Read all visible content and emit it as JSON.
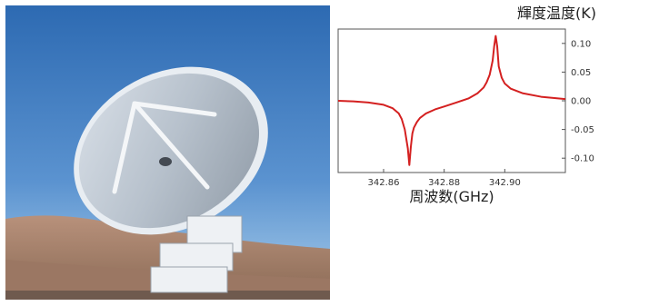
{
  "photo": {
    "subject": "radio-telescope-antenna"
  },
  "colors": {
    "line": "#d42020",
    "frame": "#555555",
    "sky_top": "#2f6fb6",
    "sky_bottom": "#9cc3e6",
    "ground": "#a98570"
  },
  "chart_data": {
    "type": "line",
    "title": "",
    "xlabel": "周波数(GHz)",
    "ylabel": "輝度温度(K)",
    "xlim": [
      342.845,
      342.92
    ],
    "ylim": [
      -0.125,
      0.125
    ],
    "xticks": [
      342.86,
      342.88,
      342.9
    ],
    "xtick_labels": [
      "342.86",
      "342.88",
      "342.90"
    ],
    "yticks": [
      0.1,
      0.05,
      0.0,
      -0.05,
      -0.1
    ],
    "ytick_labels": [
      "0.10",
      "0.05",
      "0.00",
      "-0.05",
      "-0.10"
    ],
    "grid": false,
    "legend": "none",
    "series": [
      {
        "color": "#d42020",
        "x": [
          342.845,
          342.85,
          342.855,
          342.86,
          342.863,
          342.865,
          342.866,
          342.867,
          342.868,
          342.8685,
          342.869,
          342.8695,
          342.87,
          342.871,
          342.872,
          342.874,
          342.877,
          342.88,
          342.884,
          342.888,
          342.891,
          342.893,
          342.894,
          342.895,
          342.896,
          342.8965,
          342.897,
          342.8975,
          342.898,
          342.899,
          342.9,
          342.902,
          342.906,
          342.912,
          342.92
        ],
        "y": [
          0.0,
          -0.001,
          -0.003,
          -0.007,
          -0.013,
          -0.022,
          -0.032,
          -0.05,
          -0.083,
          -0.112,
          -0.08,
          -0.057,
          -0.047,
          -0.037,
          -0.03,
          -0.022,
          -0.015,
          -0.01,
          -0.003,
          0.004,
          0.013,
          0.023,
          0.032,
          0.045,
          0.07,
          0.095,
          0.113,
          0.095,
          0.06,
          0.04,
          0.03,
          0.021,
          0.013,
          0.007,
          0.003
        ]
      }
    ]
  }
}
